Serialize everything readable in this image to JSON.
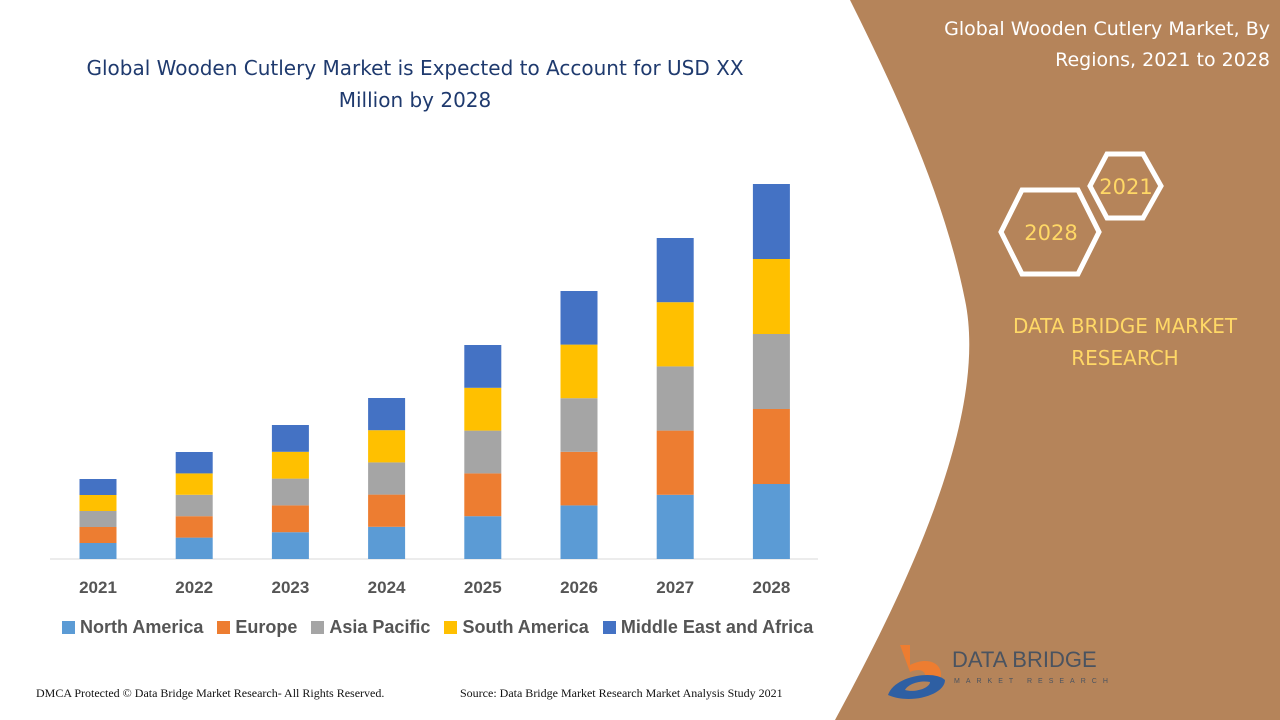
{
  "header": {
    "title": "Global Wooden Cutlery Market is Expected to Account for USD XX Million by 2028"
  },
  "side_panel": {
    "title": "Global Wooden Cutlery Market, By Regions, 2021 to 2028",
    "hex_labels": [
      "2021",
      "2028"
    ],
    "brand": "DATA BRIDGE MARKET RESEARCH",
    "logo_text": "DATA BRIDGE",
    "logo_sub": "MARKET RESEARCH",
    "color": "#b5845a"
  },
  "footer": {
    "left": "DMCA Protected © Data Bridge Market Research- All Rights Reserved.",
    "right": "Source: Data Bridge Market Research Market Analysis Study 2021"
  },
  "chart_data": {
    "type": "bar",
    "stacked": true,
    "categories": [
      "2021",
      "2022",
      "2023",
      "2024",
      "2025",
      "2026",
      "2027",
      "2028"
    ],
    "series": [
      {
        "name": "North America",
        "color": "#5b9bd5",
        "values": [
          16,
          21.4,
          26.8,
          32.2,
          42.8,
          53.6,
          64.2,
          75
        ]
      },
      {
        "name": "Europe",
        "color": "#ed7d31",
        "values": [
          16,
          21.4,
          26.8,
          32.2,
          42.8,
          53.6,
          64.2,
          75
        ]
      },
      {
        "name": "Asia Pacific",
        "color": "#a5a5a5",
        "values": [
          16,
          21.4,
          26.8,
          32.2,
          42.8,
          53.6,
          64.2,
          75
        ]
      },
      {
        "name": "South America",
        "color": "#ffc000",
        "values": [
          16,
          21.4,
          26.8,
          32.2,
          42.8,
          53.6,
          64.2,
          75
        ]
      },
      {
        "name": "Middle East and Africa",
        "color": "#4472c4",
        "values": [
          16,
          21.4,
          26.8,
          32.2,
          42.8,
          53.6,
          64.2,
          75
        ]
      }
    ],
    "ylim": [
      0,
      375
    ],
    "grid": false,
    "legend": "bottom",
    "title": "",
    "xlabel": "",
    "ylabel": ""
  }
}
